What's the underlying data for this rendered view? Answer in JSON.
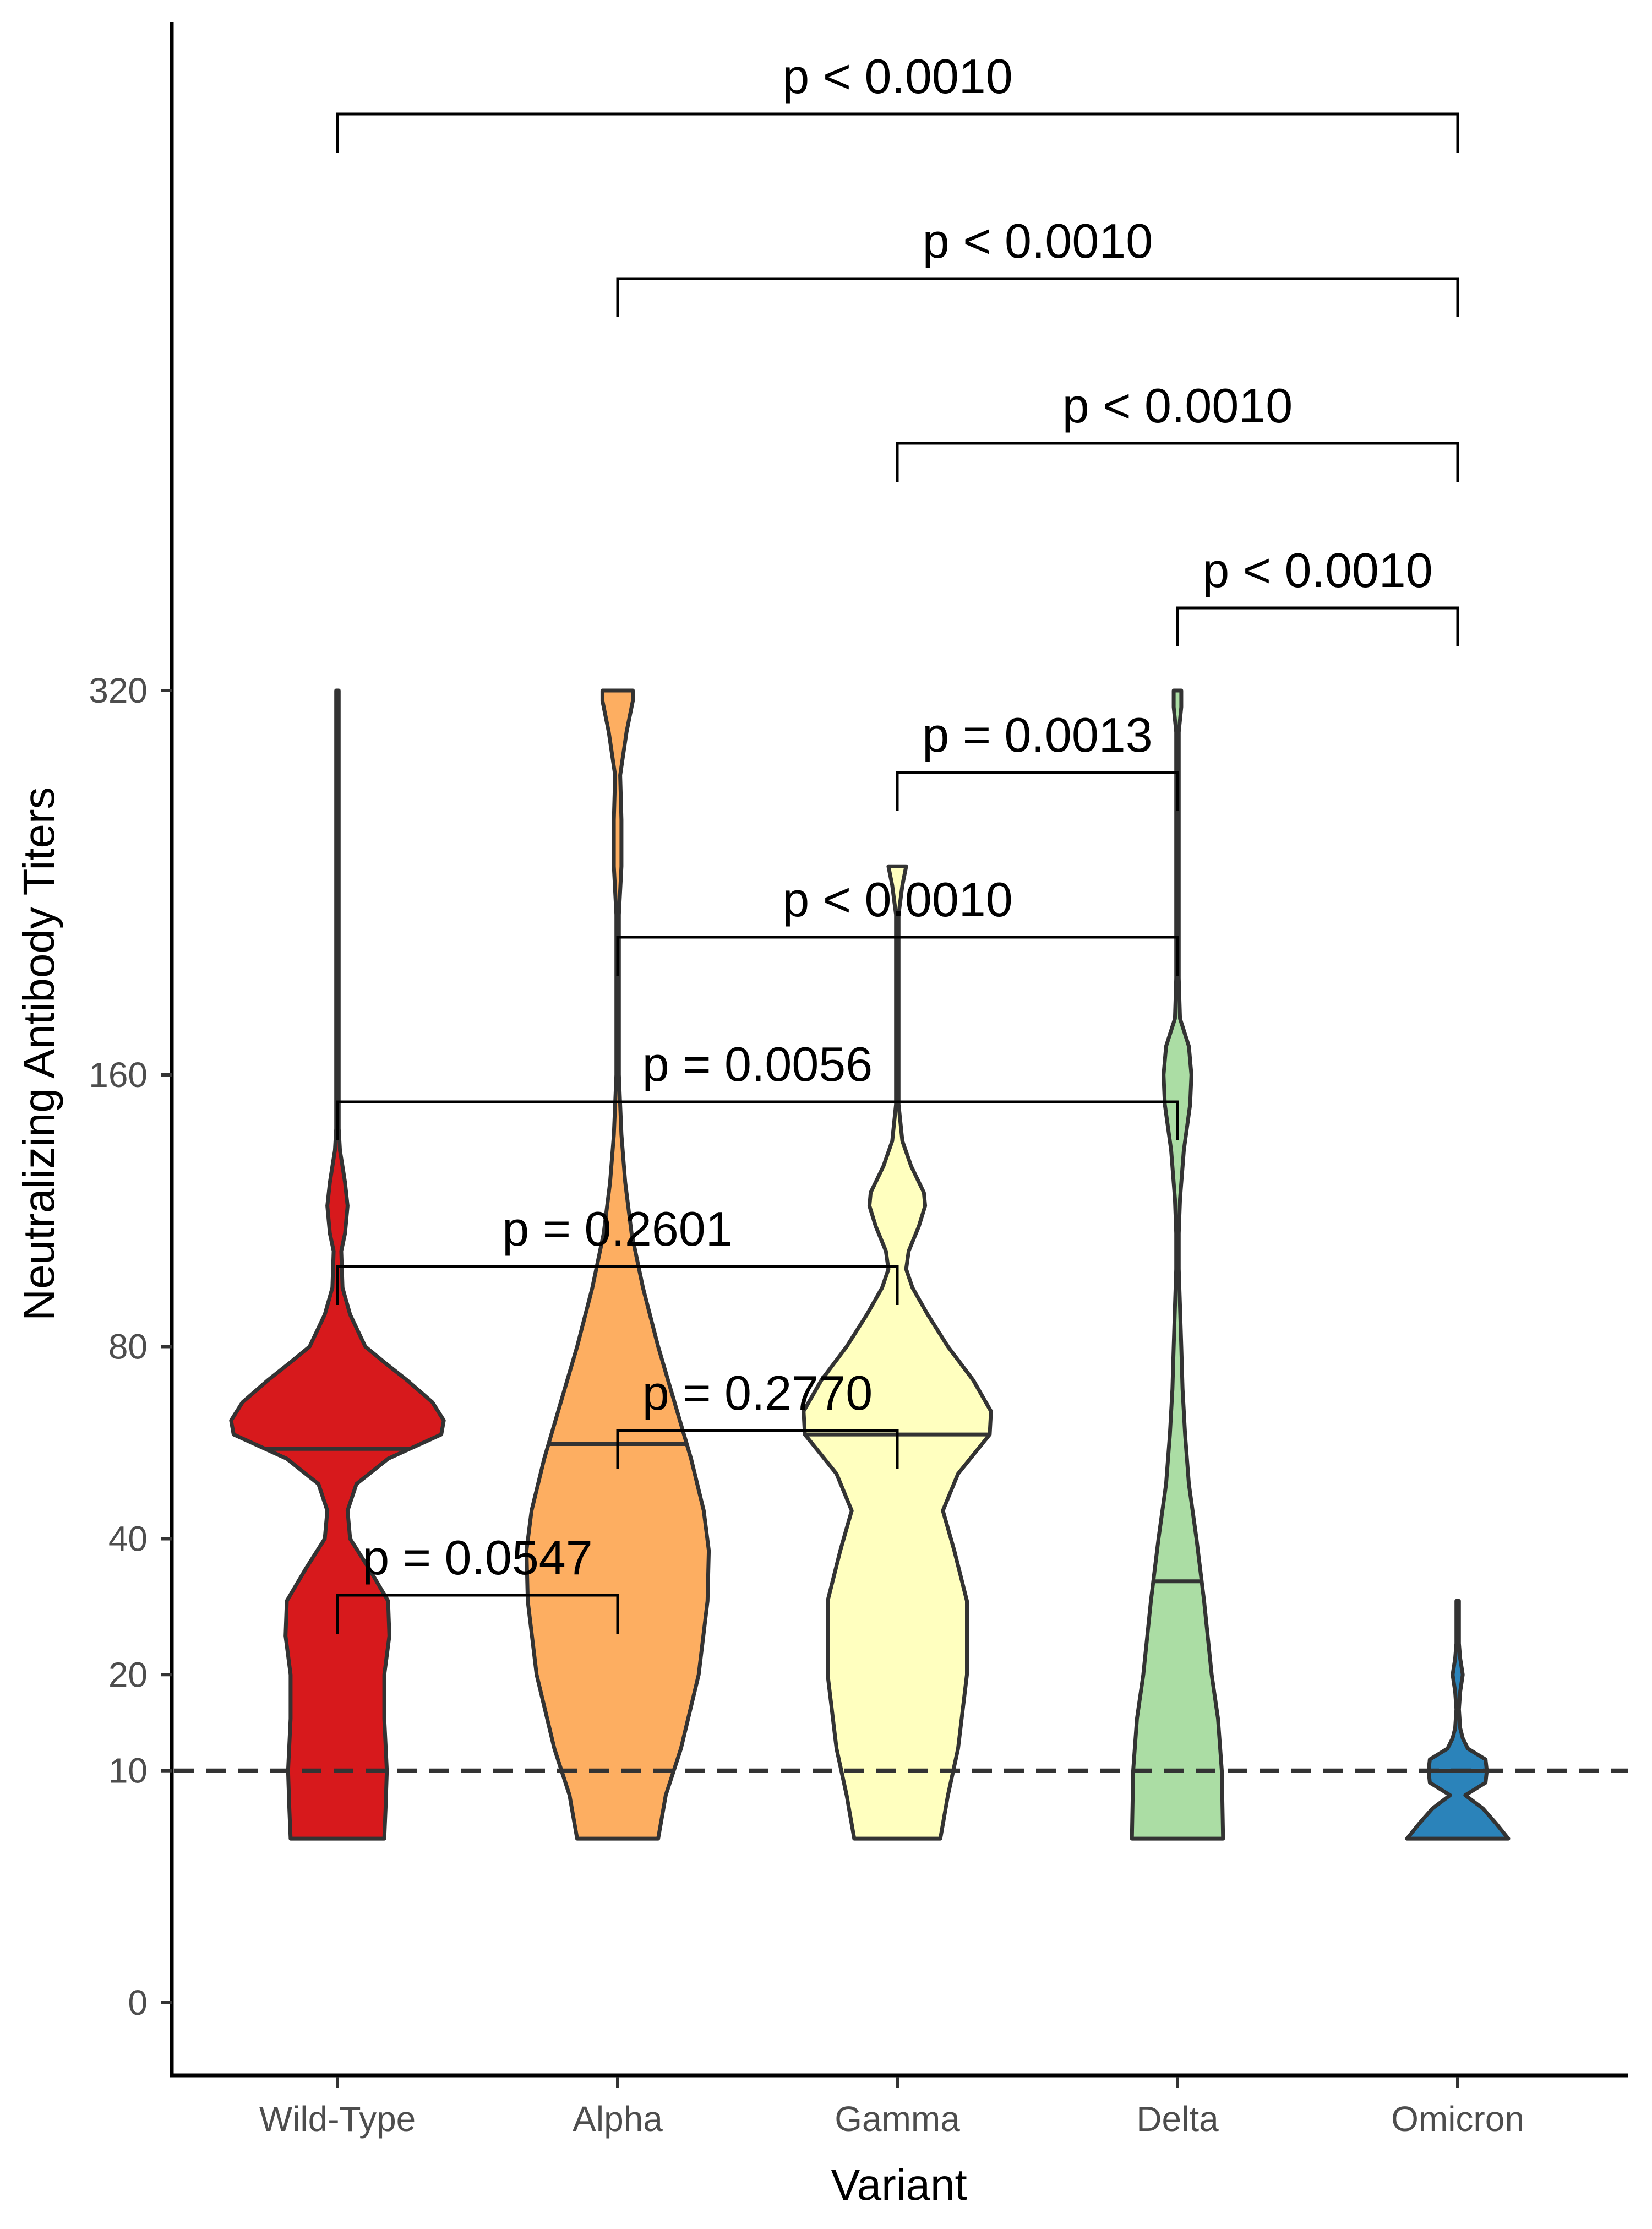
{
  "chart_data": {
    "type": "violin",
    "xlabel": "Variant",
    "ylabel": "Neutralizing Antibody Titers",
    "y_ticks": [
      0,
      10,
      20,
      40,
      80,
      160,
      320
    ],
    "y_tick_labels": [
      "0",
      "10",
      "20",
      "40",
      "80",
      "160",
      "320"
    ],
    "reference_line": {
      "y": 10,
      "style": "dashed"
    },
    "categories": [
      "Wild-Type",
      "Alpha",
      "Gamma",
      "Delta",
      "Omicron"
    ],
    "series": [
      {
        "name": "Wild-Type",
        "color": "#d7191c",
        "median": 57,
        "min": 5,
        "max": 320,
        "profile": [
          [
            5,
            0.37
          ],
          [
            7,
            0.38
          ],
          [
            10,
            0.39
          ],
          [
            15,
            0.37
          ],
          [
            20,
            0.37
          ],
          [
            25,
            0.41
          ],
          [
            30,
            0.4
          ],
          [
            35,
            0.25
          ],
          [
            40,
            0.1
          ],
          [
            45,
            0.08
          ],
          [
            50,
            0.15
          ],
          [
            55,
            0.4
          ],
          [
            60,
            0.82
          ],
          [
            63,
            0.84
          ],
          [
            67,
            0.75
          ],
          [
            72,
            0.55
          ],
          [
            76,
            0.38
          ],
          [
            80,
            0.22
          ],
          [
            88,
            0.1
          ],
          [
            95,
            0.04
          ],
          [
            105,
            0.03
          ],
          [
            110,
            0.06
          ],
          [
            118,
            0.08
          ],
          [
            125,
            0.06
          ],
          [
            130,
            0.04
          ],
          [
            135,
            0.02
          ],
          [
            142,
            0.01
          ],
          [
            150,
            0.01
          ],
          [
            170,
            0.01
          ],
          [
            210,
            0.01
          ],
          [
            240,
            0.01
          ],
          [
            260,
            0.01
          ],
          [
            300,
            0.01
          ],
          [
            320,
            0.01
          ]
        ]
      },
      {
        "name": "Alpha",
        "color": "#fdae61",
        "median": 58,
        "min": 5,
        "max": 320,
        "profile": [
          [
            5,
            0.32
          ],
          [
            8,
            0.38
          ],
          [
            12,
            0.5
          ],
          [
            20,
            0.64
          ],
          [
            30,
            0.71
          ],
          [
            38,
            0.72
          ],
          [
            45,
            0.68
          ],
          [
            55,
            0.58
          ],
          [
            65,
            0.47
          ],
          [
            80,
            0.32
          ],
          [
            95,
            0.2
          ],
          [
            110,
            0.11
          ],
          [
            125,
            0.06
          ],
          [
            140,
            0.03
          ],
          [
            160,
            0.01
          ],
          [
            185,
            0.01
          ],
          [
            200,
            0.01
          ],
          [
            220,
            0.01
          ],
          [
            240,
            0.03
          ],
          [
            260,
            0.03
          ],
          [
            280,
            0.02
          ],
          [
            300,
            0.07
          ],
          [
            315,
            0.12
          ],
          [
            320,
            0.12
          ]
        ]
      },
      {
        "name": "Gamma",
        "color": "#ffffbf",
        "median": 60,
        "min": 5,
        "max": 240,
        "profile": [
          [
            5,
            0.34
          ],
          [
            8,
            0.4
          ],
          [
            12,
            0.48
          ],
          [
            20,
            0.55
          ],
          [
            30,
            0.55
          ],
          [
            38,
            0.45
          ],
          [
            45,
            0.36
          ],
          [
            52,
            0.48
          ],
          [
            60,
            0.73
          ],
          [
            65,
            0.74
          ],
          [
            72,
            0.6
          ],
          [
            80,
            0.4
          ],
          [
            88,
            0.24
          ],
          [
            95,
            0.12
          ],
          [
            100,
            0.07
          ],
          [
            105,
            0.09
          ],
          [
            112,
            0.17
          ],
          [
            118,
            0.22
          ],
          [
            122,
            0.21
          ],
          [
            130,
            0.11
          ],
          [
            138,
            0.04
          ],
          [
            150,
            0.01
          ],
          [
            165,
            0.01
          ],
          [
            180,
            0.01
          ],
          [
            200,
            0.01
          ],
          [
            220,
            0.01
          ],
          [
            232,
            0.04
          ],
          [
            240,
            0.07
          ]
        ]
      },
      {
        "name": "Delta",
        "color": "#abdda4",
        "median": 33,
        "min": 5,
        "max": 320,
        "profile": [
          [
            5,
            0.36
          ],
          [
            10,
            0.35
          ],
          [
            15,
            0.32
          ],
          [
            20,
            0.27
          ],
          [
            30,
            0.21
          ],
          [
            40,
            0.15
          ],
          [
            50,
            0.09
          ],
          [
            60,
            0.06
          ],
          [
            70,
            0.04
          ],
          [
            80,
            0.03
          ],
          [
            90,
            0.02
          ],
          [
            100,
            0.01
          ],
          [
            110,
            0.01
          ],
          [
            120,
            0.02
          ],
          [
            135,
            0.05
          ],
          [
            150,
            0.1
          ],
          [
            160,
            0.11
          ],
          [
            170,
            0.09
          ],
          [
            180,
            0.02
          ],
          [
            195,
            0.01
          ],
          [
            210,
            0.01
          ],
          [
            230,
            0.01
          ],
          [
            240,
            0.01
          ],
          [
            250,
            0.01
          ],
          [
            270,
            0.01
          ],
          [
            290,
            0.01
          ],
          [
            300,
            0.01
          ],
          [
            312,
            0.03
          ],
          [
            320,
            0.03
          ]
        ]
      },
      {
        "name": "Omicron",
        "color": "#2b83ba",
        "median": 10,
        "min": 5,
        "max": 30,
        "profile": [
          [
            5,
            0.4
          ],
          [
            6,
            0.3
          ],
          [
            7,
            0.2
          ],
          [
            8,
            0.06
          ],
          [
            9,
            0.22
          ],
          [
            10,
            0.23
          ],
          [
            11,
            0.22
          ],
          [
            12,
            0.08
          ],
          [
            13,
            0.04
          ],
          [
            14,
            0.02
          ],
          [
            16,
            0.01
          ],
          [
            18,
            0.02
          ],
          [
            20,
            0.04
          ],
          [
            22,
            0.02
          ],
          [
            24,
            0.01
          ],
          [
            27,
            0.01
          ],
          [
            30,
            0.01
          ]
        ]
      }
    ],
    "comparisons": [
      {
        "from": "Wild-Type",
        "to": "Omicron",
        "label": "p <  0.0010"
      },
      {
        "from": "Alpha",
        "to": "Omicron",
        "label": "p <  0.0010"
      },
      {
        "from": "Gamma",
        "to": "Omicron",
        "label": "p <  0.0010"
      },
      {
        "from": "Delta",
        "to": "Omicron",
        "label": "p <  0.0010"
      },
      {
        "from": "Gamma",
        "to": "Delta",
        "label": "p =  0.0013"
      },
      {
        "from": "Alpha",
        "to": "Delta",
        "label": "p <  0.0010"
      },
      {
        "from": "Wild-Type",
        "to": "Delta",
        "label": "p =  0.0056"
      },
      {
        "from": "Wild-Type",
        "to": "Gamma",
        "label": "p =  0.2601"
      },
      {
        "from": "Alpha",
        "to": "Gamma",
        "label": "p =  0.2770"
      },
      {
        "from": "Wild-Type",
        "to": "Alpha",
        "label": "p =  0.0547"
      }
    ]
  }
}
